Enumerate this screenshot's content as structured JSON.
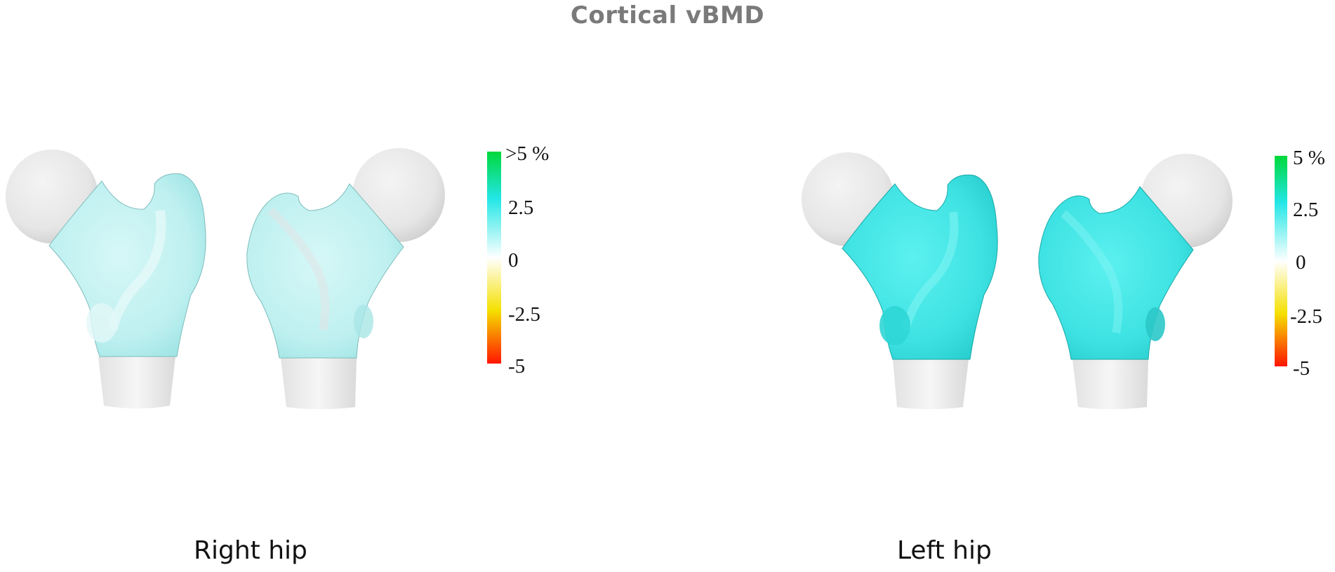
{
  "title": "Cortical vBMD",
  "panels": [
    {
      "label": "Right hip",
      "colorbar_ticks": [
        ">5 %",
        "2.5",
        "0",
        "-2.5",
        "-5"
      ]
    },
    {
      "label": "Left hip",
      "colorbar_ticks": [
        "5 %",
        "2.5",
        "0",
        "-2.5",
        "-5"
      ]
    }
  ],
  "colors": {
    "scale_top": "#00d83a",
    "scale_upper": "#22e6e6",
    "scale_mid": "#ffffff",
    "scale_lower": "#f5e000",
    "scale_bottom": "#ff1500",
    "right_hip_surface": "#c4f2f2",
    "left_hip_surface": "#3fe3e3",
    "head_gray": "#e6e6e6"
  }
}
